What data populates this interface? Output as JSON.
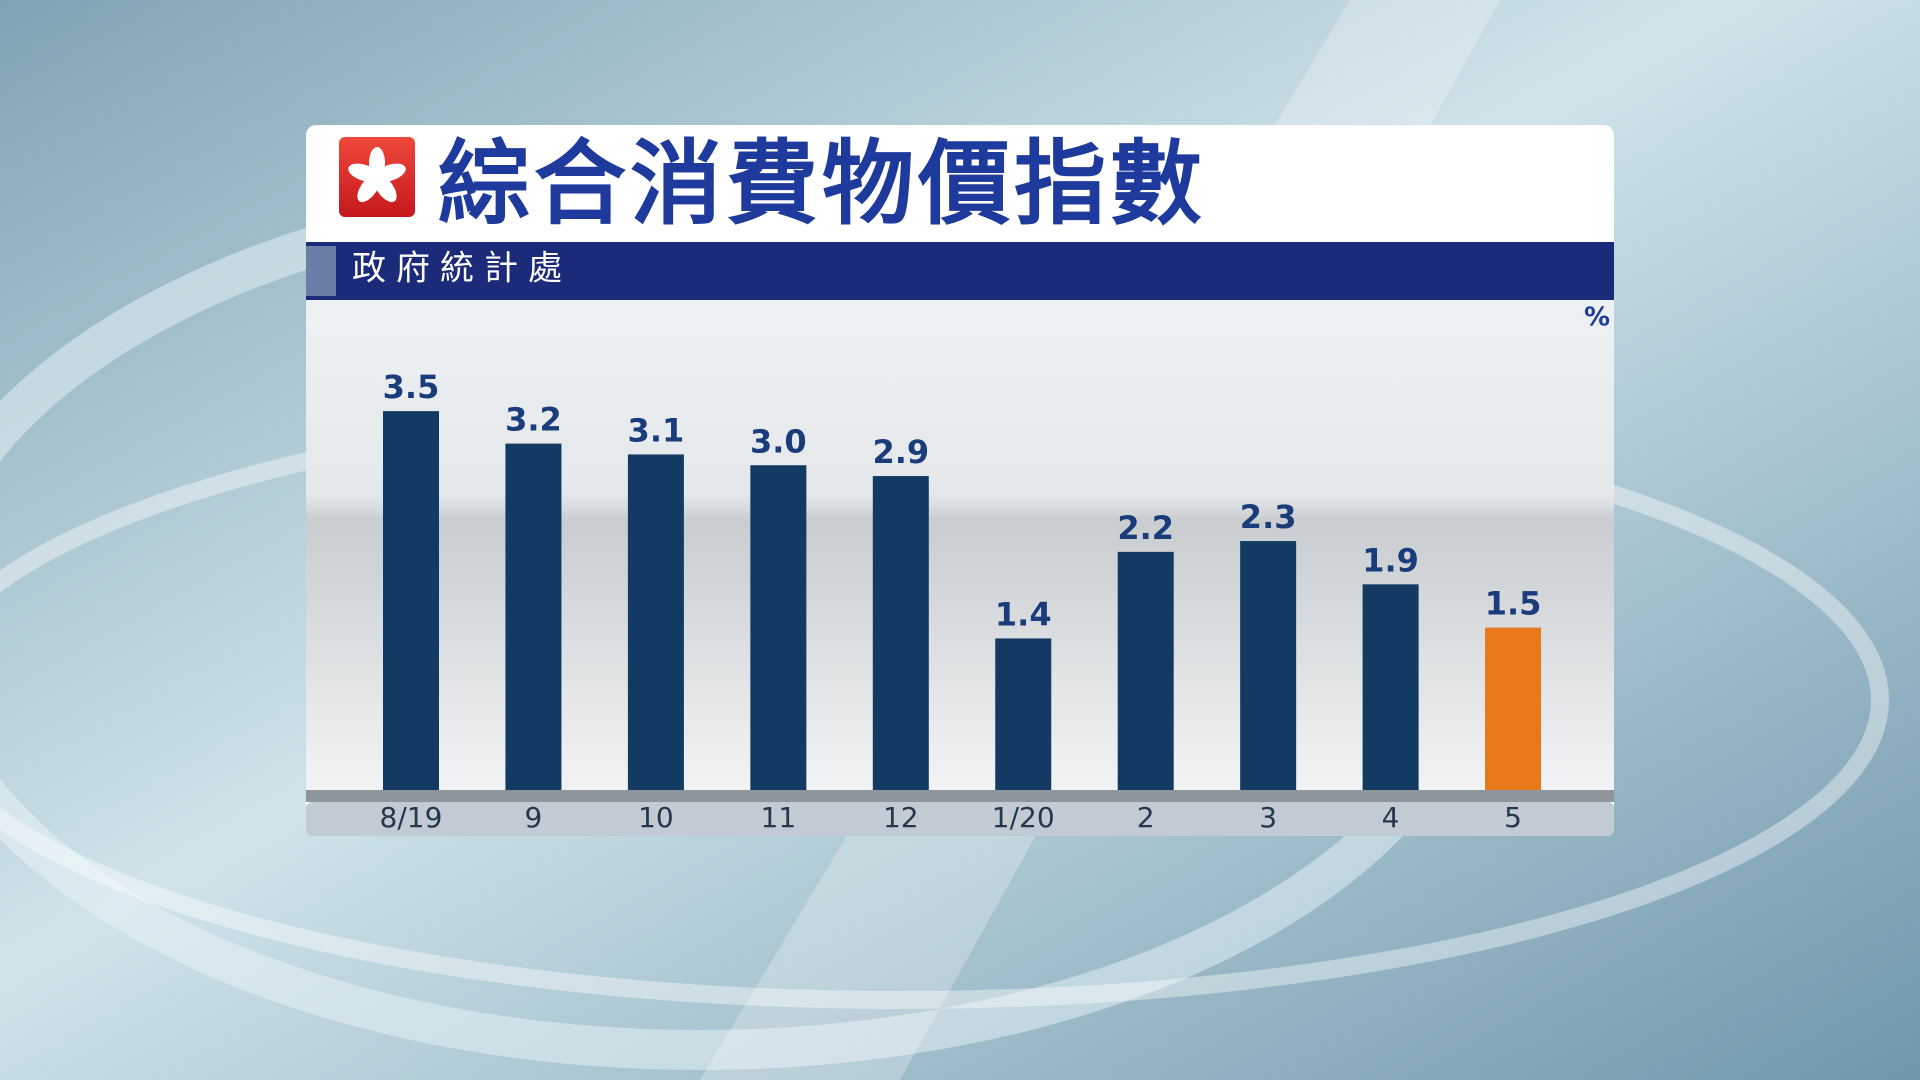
{
  "chart_data": {
    "type": "bar",
    "title": "綜合消費物價指數",
    "subtitle": "政府統計處",
    "unit": "%",
    "categories": [
      "8/19",
      "9",
      "10",
      "11",
      "12",
      "1/20",
      "2",
      "3",
      "4",
      "5"
    ],
    "values": [
      3.5,
      3.2,
      3.1,
      3.0,
      2.9,
      1.4,
      2.2,
      2.3,
      1.9,
      1.5
    ],
    "value_labels": [
      "3.5",
      "3.2",
      "3.1",
      "3.0",
      "2.9",
      "1.4",
      "2.2",
      "2.3",
      "1.9",
      "1.5"
    ],
    "colors": [
      "#123a63",
      "#123a63",
      "#123a63",
      "#123a63",
      "#123a63",
      "#123a63",
      "#123a63",
      "#123a63",
      "#123a63",
      "#e8791a"
    ],
    "ylim": [
      0,
      4
    ]
  }
}
